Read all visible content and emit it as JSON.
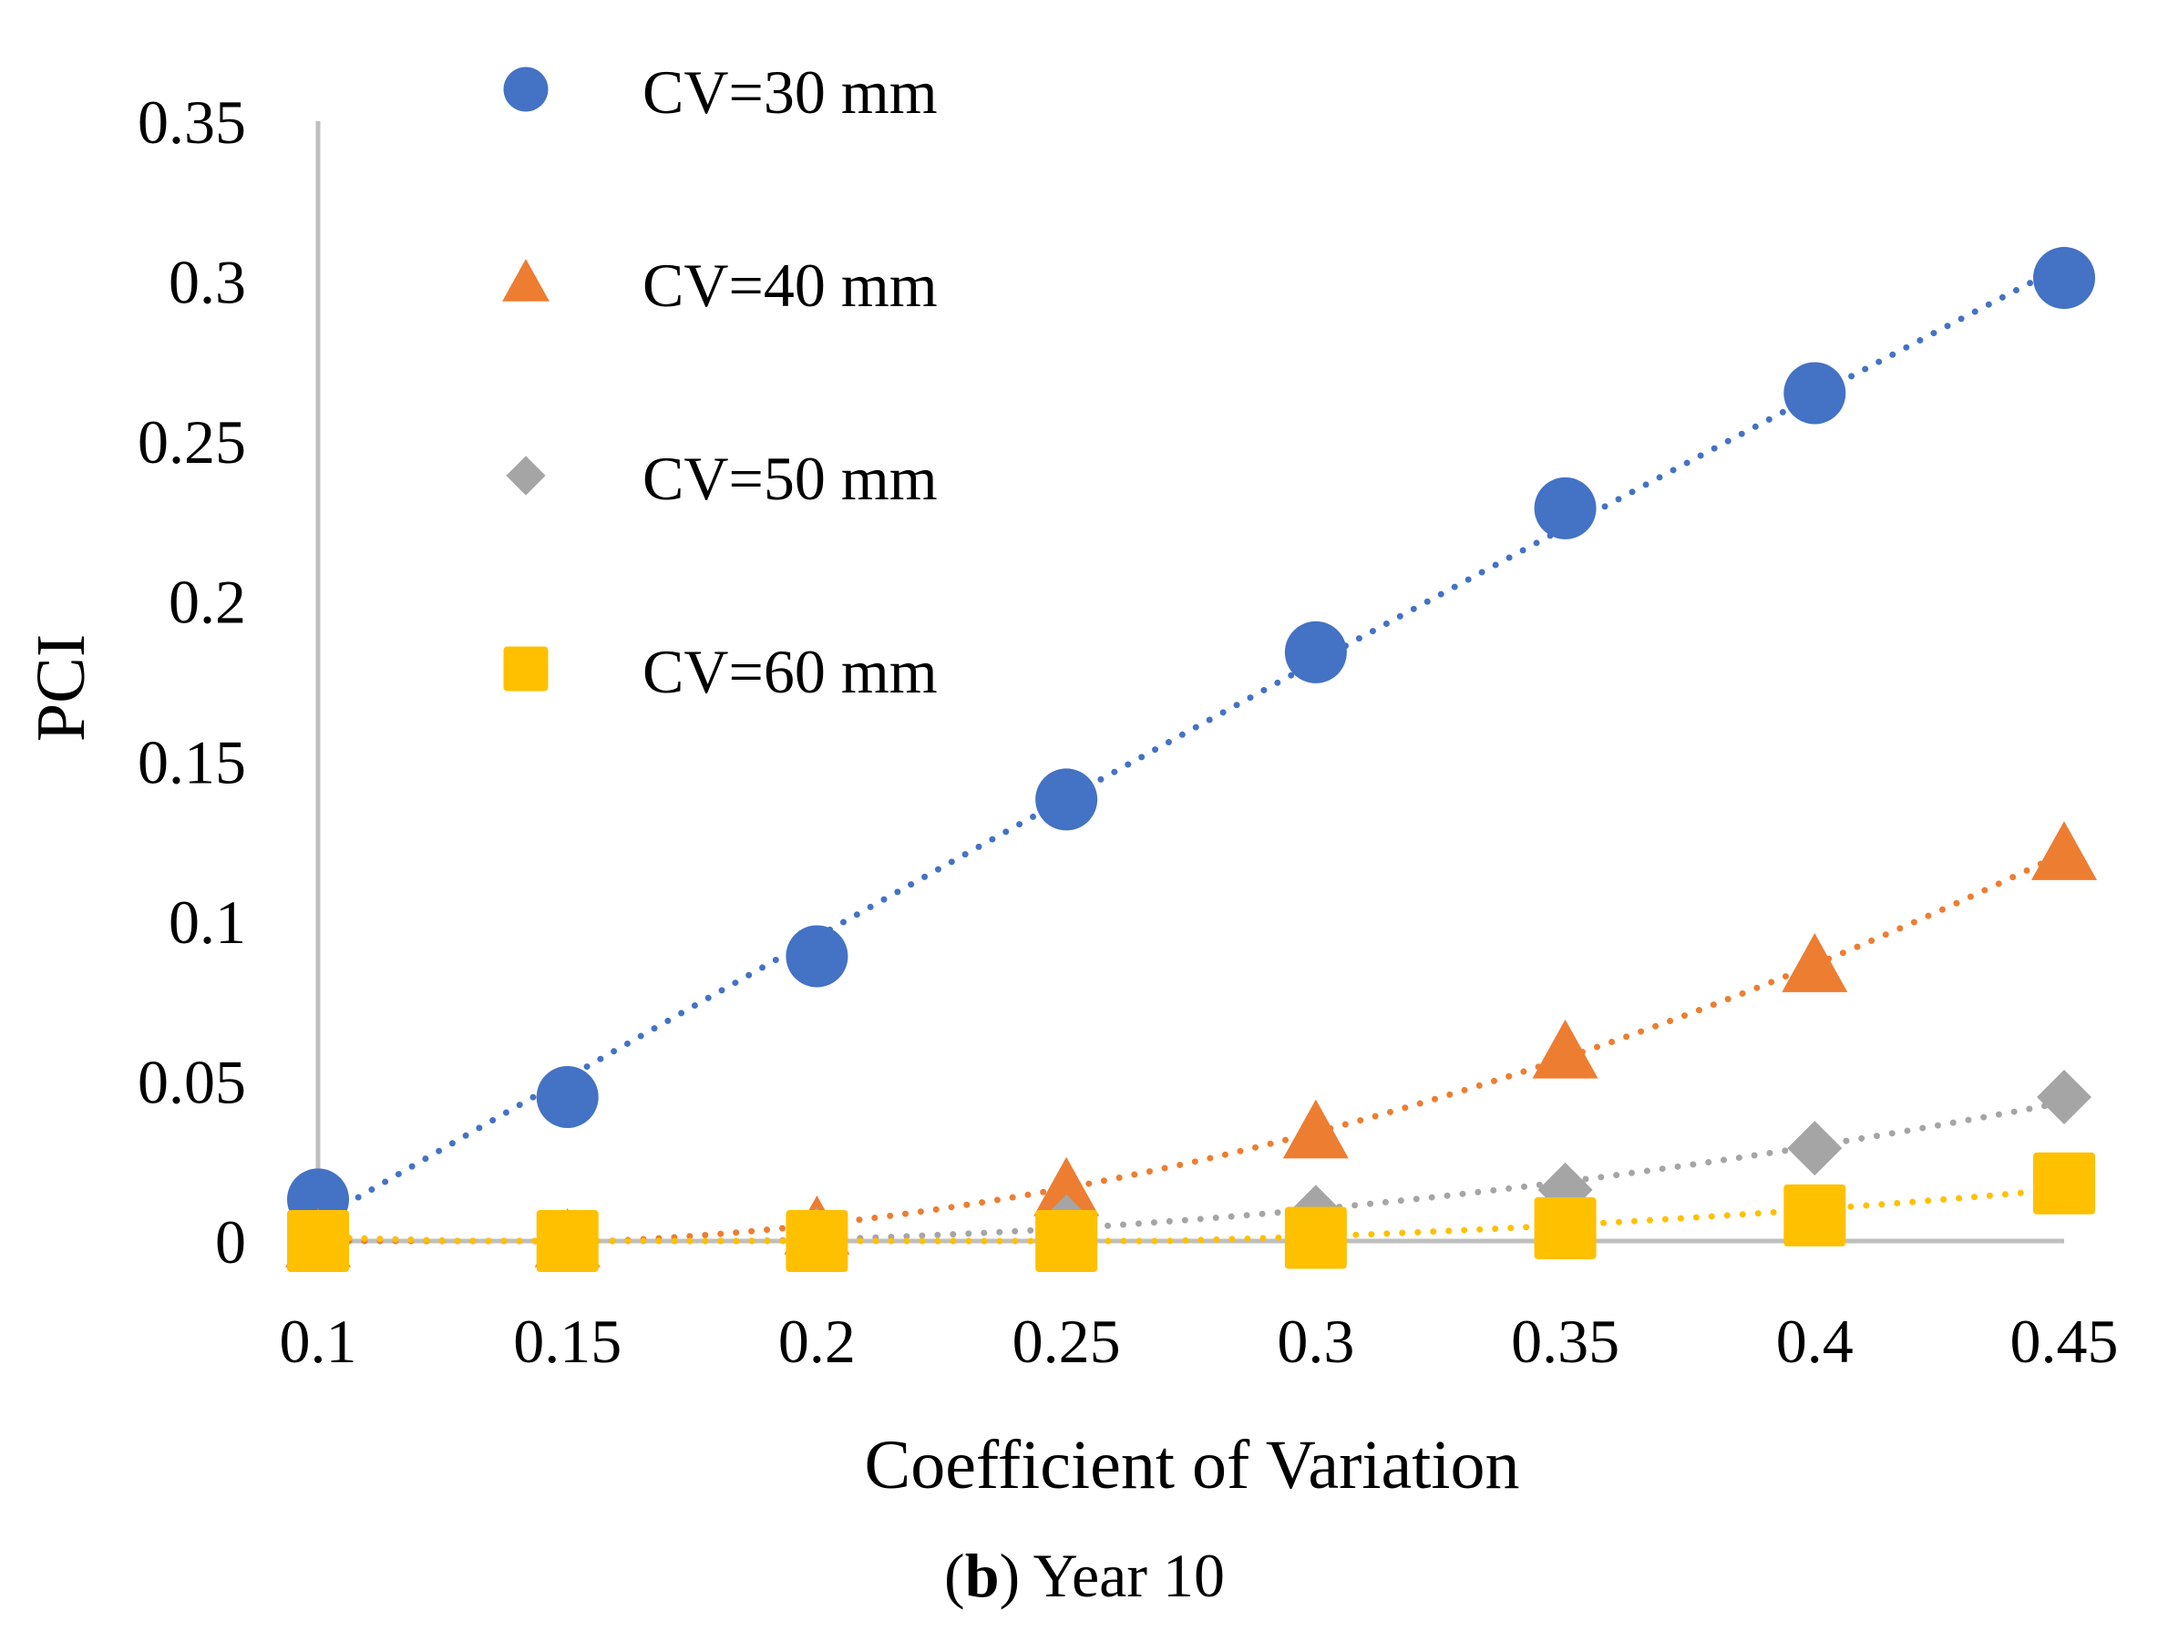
{
  "chart_data": {
    "type": "scatter",
    "title": "",
    "xlabel": "Coefficient of Variation",
    "ylabel": "PCI",
    "x": [
      0.1,
      0.15,
      0.2,
      0.25,
      0.3,
      0.35,
      0.4,
      0.45
    ],
    "x_tick_labels": [
      "0.1",
      "0.15",
      "0.2",
      "0.25",
      "0.3",
      "0.35",
      "0.4",
      "0.45"
    ],
    "y_tick_labels": [
      "0",
      "0.05",
      "0.1",
      "0.15",
      "0.2",
      "0.25",
      "0.3",
      "0.35"
    ],
    "xlim": [
      0.1,
      0.45
    ],
    "ylim": [
      0,
      0.35
    ],
    "grid": false,
    "legend_position": "top-left",
    "trendlines": "dotted polynomial",
    "series": [
      {
        "name": "CV=30 mm",
        "marker": "circle",
        "color": "#4472C4",
        "values": [
          0.013,
          0.045,
          0.089,
          0.138,
          0.184,
          0.229,
          0.265,
          0.301
        ]
      },
      {
        "name": "CV=40 mm",
        "marker": "triangle",
        "color": "#ED7D31",
        "values": [
          0.0,
          0.0,
          0.004,
          0.016,
          0.034,
          0.059,
          0.086,
          0.121
        ]
      },
      {
        "name": "CV=50 mm",
        "marker": "diamond",
        "color": "#A5A5A5",
        "values": [
          0.0,
          0.0,
          0.002,
          0.006,
          0.009,
          0.016,
          0.029,
          0.045
        ]
      },
      {
        "name": "CV=60 mm",
        "marker": "square",
        "color": "#FFC000",
        "values": [
          0.0,
          0.0,
          0.0,
          0.0,
          0.001,
          0.004,
          0.008,
          0.018
        ]
      }
    ]
  },
  "caption": {
    "label": "b",
    "text": " Year 10"
  }
}
